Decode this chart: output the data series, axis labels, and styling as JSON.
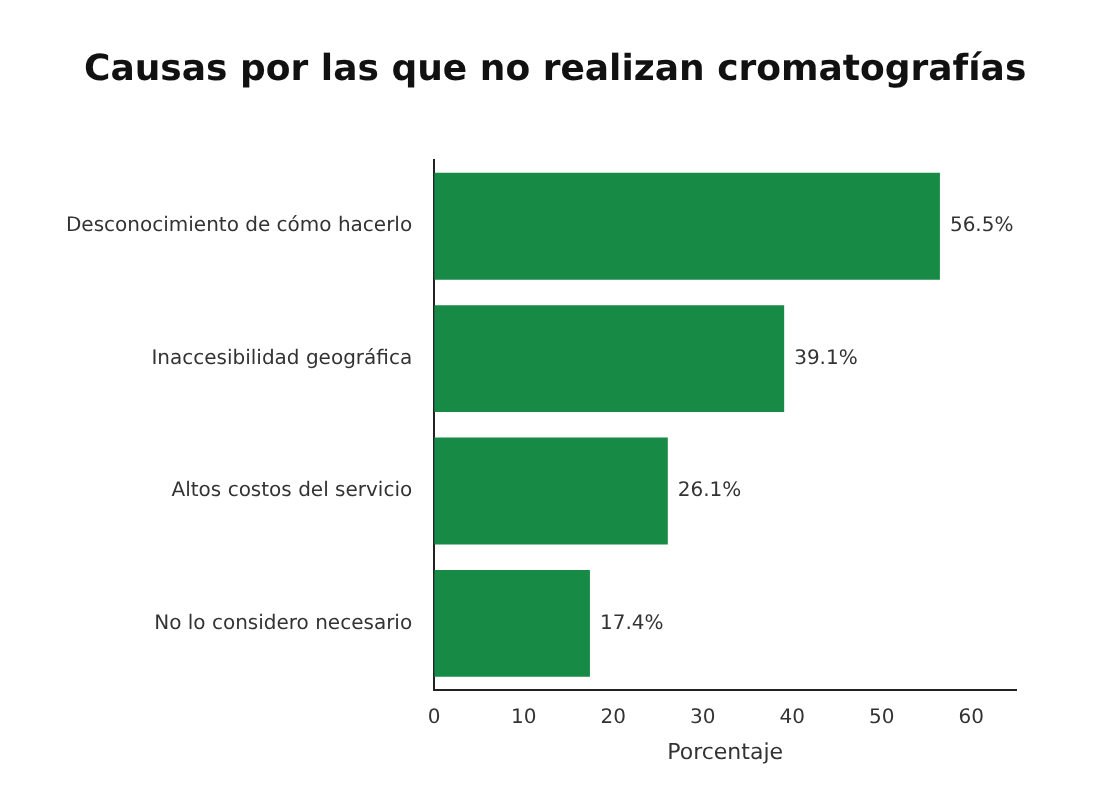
{
  "chart_data": {
    "type": "bar",
    "orientation": "horizontal",
    "title": "Causas por las que no realizan cromatografías",
    "xlabel": "Porcentaje",
    "categories": [
      "Desconocimiento de cómo hacerlo",
      "Inaccesibilidad geográfica",
      "Altos costos del servicio",
      "No lo considero necesario"
    ],
    "values": [
      56.5,
      39.1,
      26.1,
      17.4
    ],
    "color": "#178a45",
    "value_labels": [
      "56.5%",
      "39.1%",
      "26.1%",
      "17.4%"
    ],
    "xlim": [
      0,
      65
    ],
    "xticks": [
      0,
      10,
      20,
      30,
      40,
      50,
      60
    ],
    "grid": false,
    "legend": false
  }
}
